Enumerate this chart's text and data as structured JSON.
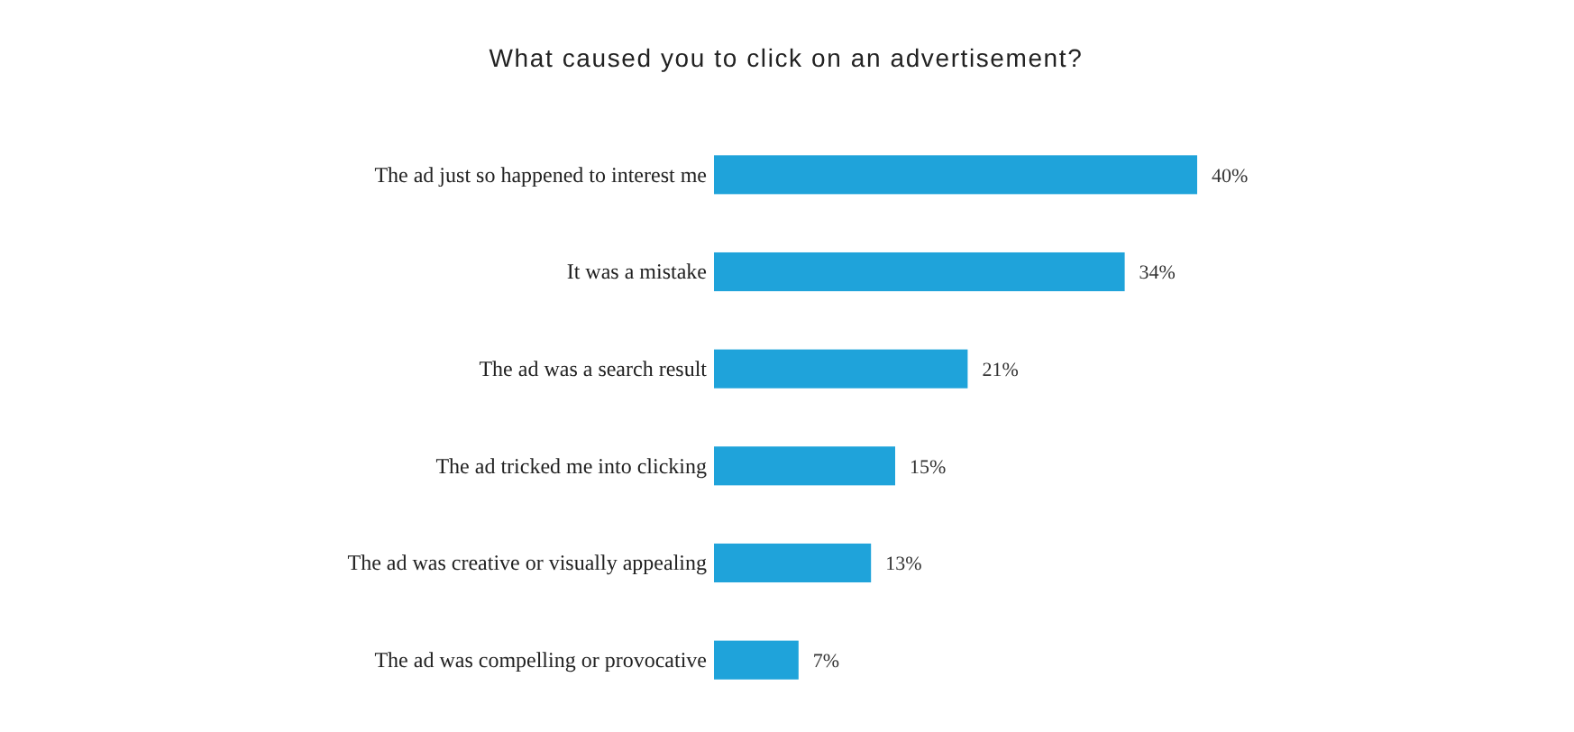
{
  "chart_data": {
    "type": "bar",
    "orientation": "horizontal",
    "title": "What caused you to click on an advertisement?",
    "categories": [
      "The ad just so happened to interest me",
      "It was a mistake",
      "The ad was a search result",
      "The ad tricked me into clicking",
      "The ad was creative or visually appealing",
      "The ad was compelling or provocative"
    ],
    "values": [
      40,
      34,
      21,
      15,
      13,
      7
    ],
    "value_labels": [
      "40%",
      "34%",
      "21%",
      "15%",
      "13%",
      "7%"
    ],
    "color": "#1fa3da",
    "xlim": [
      0,
      40
    ]
  }
}
